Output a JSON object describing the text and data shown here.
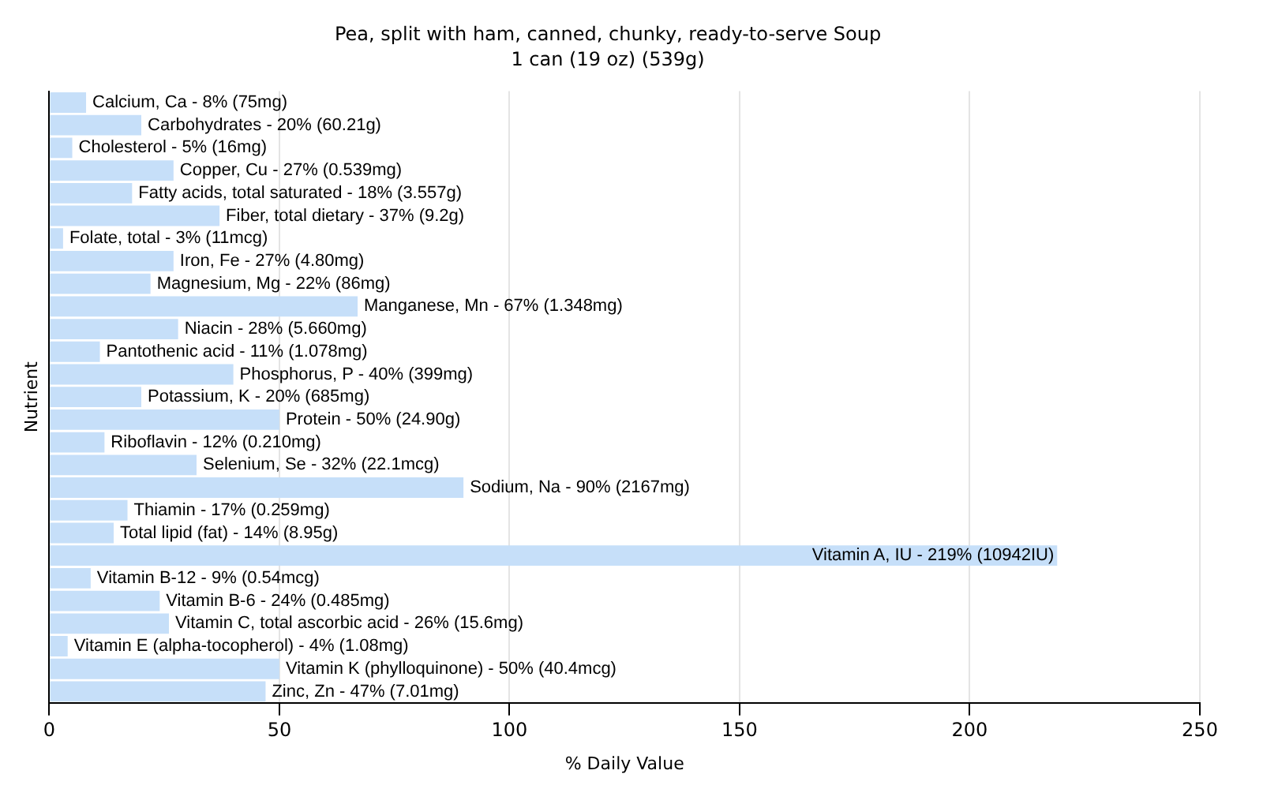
{
  "chart_data": {
    "type": "bar",
    "orientation": "horizontal",
    "title": "Pea, split with ham, canned, chunky, ready-to-serve Soup",
    "subtitle": "1 can (19 oz) (539g)",
    "xlabel": "% Daily Value",
    "ylabel": "Nutrient",
    "tick_labels": "x",
    "grid": "x",
    "color": "#c6dff9",
    "categories": [
      "Calcium, Ca - 8% (75mg)",
      "Carbohydrates - 20% (60.21g)",
      "Cholesterol - 5% (16mg)",
      "Copper, Cu - 27% (0.539mg)",
      "Fatty acids, total saturated - 18% (3.557g)",
      "Fiber, total dietary - 37% (9.2g)",
      "Folate, total - 3% (11mcg)",
      "Iron, Fe - 27% (4.80mg)",
      "Magnesium, Mg - 22% (86mg)",
      "Manganese, Mn - 67% (1.348mg)",
      "Niacin - 28% (5.660mg)",
      "Pantothenic acid - 11% (1.078mg)",
      "Phosphorus, P - 40% (399mg)",
      "Potassium, K - 20% (685mg)",
      "Protein - 50% (24.90g)",
      "Riboflavin - 12% (0.210mg)",
      "Selenium, Se - 32% (22.1mcg)",
      "Sodium, Na - 90% (2167mg)",
      "Thiamin - 17% (0.259mg)",
      "Total lipid (fat) - 14% (8.95g)",
      "Vitamin A, IU - 219% (10942IU)",
      "Vitamin B-12 - 9% (0.54mcg)",
      "Vitamin B-6 - 24% (0.485mg)",
      "Vitamin C, total ascorbic acid - 26% (15.6mg)",
      "Vitamin E (alpha-tocopherol) - 4% (1.08mg)",
      "Vitamin K (phylloquinone) - 50% (40.4mcg)",
      "Zinc, Zn - 47% (7.01mg)"
    ],
    "values": [
      8,
      20,
      5,
      27,
      18,
      37,
      3,
      27,
      22,
      67,
      28,
      11,
      40,
      20,
      50,
      12,
      32,
      90,
      17,
      14,
      219,
      9,
      24,
      26,
      4,
      50,
      47
    ],
    "xlim": [
      0,
      250
    ],
    "xticks": [
      0,
      50,
      100,
      150,
      200,
      250
    ]
  }
}
